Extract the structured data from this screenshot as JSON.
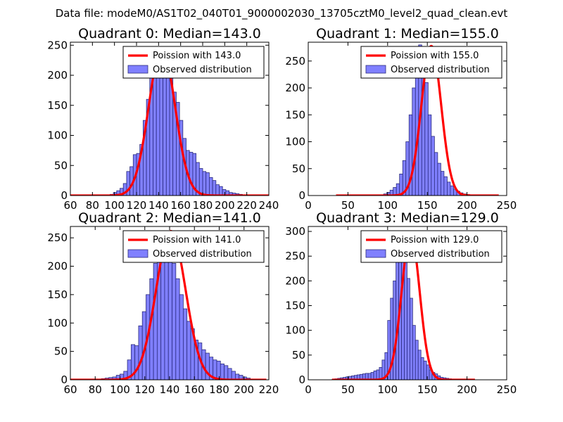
{
  "suptitle": "Data file: modeM0/AS1T02_040T01_9000002030_13705cztM0_level2_quad_clean.evt",
  "colors": {
    "bar_fill": "#8080ff",
    "bar_edge": "#2a2a7a",
    "poisson_line": "#ff0000",
    "legend_edge": "#000000"
  },
  "legend": {
    "poisson_label_prefix": "Poission with ",
    "observed_label": "Observed distribution"
  },
  "chart_data": [
    {
      "type": "bar",
      "title": "Quadrant 0: Median=143.0",
      "median": 143.0,
      "poisson_label": "Poission with 143.0",
      "xlim": [
        60,
        240
      ],
      "ylim": [
        0,
        255
      ],
      "xticks": [
        60,
        80,
        100,
        120,
        140,
        160,
        180,
        200,
        220,
        240
      ],
      "yticks": [
        0,
        50,
        100,
        150,
        200,
        250
      ],
      "poisson_peak": 245,
      "poisson_x_range": [
        60,
        240
      ],
      "bin_start": 96,
      "bin_width": 3,
      "bin_counts": [
        2,
        5,
        8,
        12,
        20,
        40,
        48,
        68,
        70,
        85,
        125,
        160,
        200,
        215,
        245,
        225,
        210,
        200,
        195,
        172,
        155,
        125,
        95,
        75,
        72,
        70,
        55,
        45,
        40,
        38,
        30,
        25,
        18,
        15,
        10,
        8,
        5,
        4,
        3,
        2
      ]
    },
    {
      "type": "bar",
      "title": "Quadrant 1: Median=155.0",
      "median": 155.0,
      "poisson_label": "Poission with 155.0",
      "xlim": [
        0,
        250
      ],
      "ylim": [
        0,
        285
      ],
      "xticks": [
        0,
        50,
        100,
        150,
        200,
        250
      ],
      "yticks": [
        0,
        50,
        100,
        150,
        200,
        250
      ],
      "poisson_peak": 278,
      "poisson_x_range": [
        35,
        240
      ],
      "bin_start": 95,
      "bin_width": 4,
      "bin_counts": [
        3,
        6,
        10,
        15,
        22,
        40,
        65,
        100,
        150,
        200,
        250,
        280,
        250,
        210,
        150,
        110,
        80,
        60,
        45,
        35,
        25,
        18,
        12,
        8,
        5,
        3,
        2
      ]
    },
    {
      "type": "bar",
      "title": "Quadrant 2: Median=141.0",
      "median": 141.0,
      "poisson_label": "Poission with 141.0",
      "xlim": [
        60,
        220
      ],
      "ylim": [
        0,
        270
      ],
      "xticks": [
        60,
        80,
        100,
        120,
        140,
        160,
        180,
        200,
        220
      ],
      "yticks": [
        0,
        50,
        100,
        150,
        200,
        250
      ],
      "poisson_peak": 262,
      "poisson_x_range": [
        60,
        218
      ],
      "bin_start": 85,
      "bin_width": 3,
      "bin_counts": [
        2,
        3,
        4,
        5,
        8,
        10,
        15,
        35,
        62,
        60,
        95,
        120,
        150,
        178,
        205,
        222,
        238,
        245,
        240,
        205,
        178,
        150,
        125,
        103,
        90,
        70,
        65,
        53,
        47,
        40,
        35,
        33,
        28,
        25,
        20,
        15,
        10,
        8,
        5,
        3
      ]
    },
    {
      "type": "bar",
      "title": "Quadrant 3: Median=129.0",
      "median": 129.0,
      "poisson_label": "Poission with 129.0",
      "xlim": [
        0,
        250
      ],
      "ylim": [
        0,
        310
      ],
      "xticks": [
        0,
        50,
        100,
        150,
        200,
        250
      ],
      "yticks": [
        0,
        50,
        100,
        150,
        200,
        250,
        300
      ],
      "poisson_peak": 295,
      "poisson_x_range": [
        30,
        210
      ],
      "bin_start": 30,
      "bin_width": 3.5,
      "bin_counts": [
        1,
        2,
        3,
        4,
        5,
        6,
        7,
        8,
        9,
        10,
        11,
        12,
        13,
        13,
        15,
        18,
        20,
        25,
        40,
        55,
        120,
        165,
        200,
        280,
        255,
        295,
        245,
        205,
        165,
        110,
        80,
        60,
        45,
        38,
        30,
        20,
        15,
        12,
        8,
        5,
        4,
        3,
        2,
        1,
        1,
        0,
        0,
        0,
        0,
        0,
        0
      ]
    }
  ]
}
